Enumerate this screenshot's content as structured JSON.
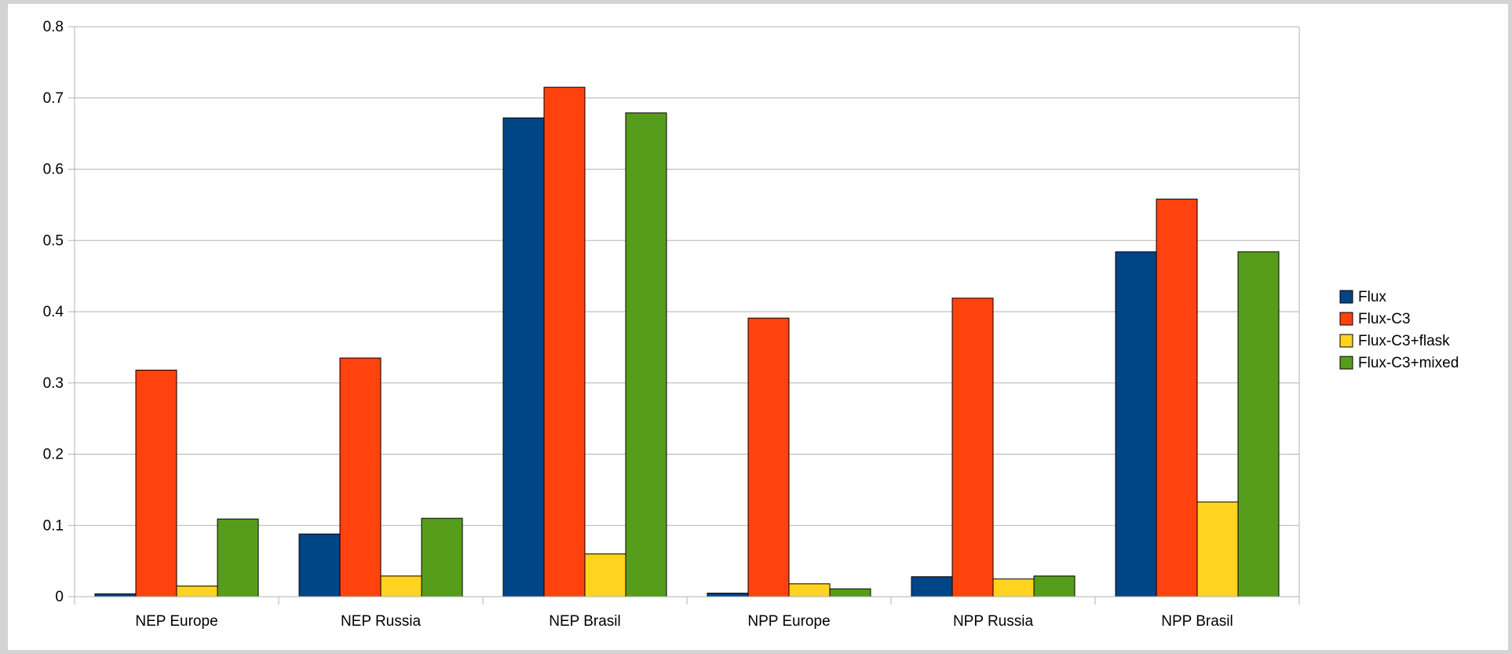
{
  "chart_data": {
    "type": "bar",
    "title": "",
    "xlabel": "",
    "ylabel": "",
    "ylim": [
      0,
      0.8
    ],
    "yticks": [
      "0",
      "0.1",
      "0.2",
      "0.3",
      "0.4",
      "0.5",
      "0.6",
      "0.7",
      "0.8"
    ],
    "grid": true,
    "legend_position": "right",
    "categories": [
      "NEP Europe",
      "NEP Russia",
      "NEP Brasil",
      "NPP Europe",
      "NPP Russia",
      "NPP Brasil"
    ],
    "series": [
      {
        "name": "Flux",
        "color": "#004586",
        "values": [
          0.004,
          0.088,
          0.672,
          0.005,
          0.028,
          0.484
        ]
      },
      {
        "name": "Flux-C3",
        "color": "#ff420e",
        "values": [
          0.318,
          0.335,
          0.715,
          0.391,
          0.419,
          0.558
        ]
      },
      {
        "name": "Flux-C3+flask",
        "color": "#ffd320",
        "values": [
          0.015,
          0.029,
          0.06,
          0.018,
          0.025,
          0.133
        ]
      },
      {
        "name": "Flux-C3+mixed",
        "color": "#579d1c",
        "values": [
          0.109,
          0.11,
          0.679,
          0.011,
          0.029,
          0.484
        ]
      }
    ]
  }
}
